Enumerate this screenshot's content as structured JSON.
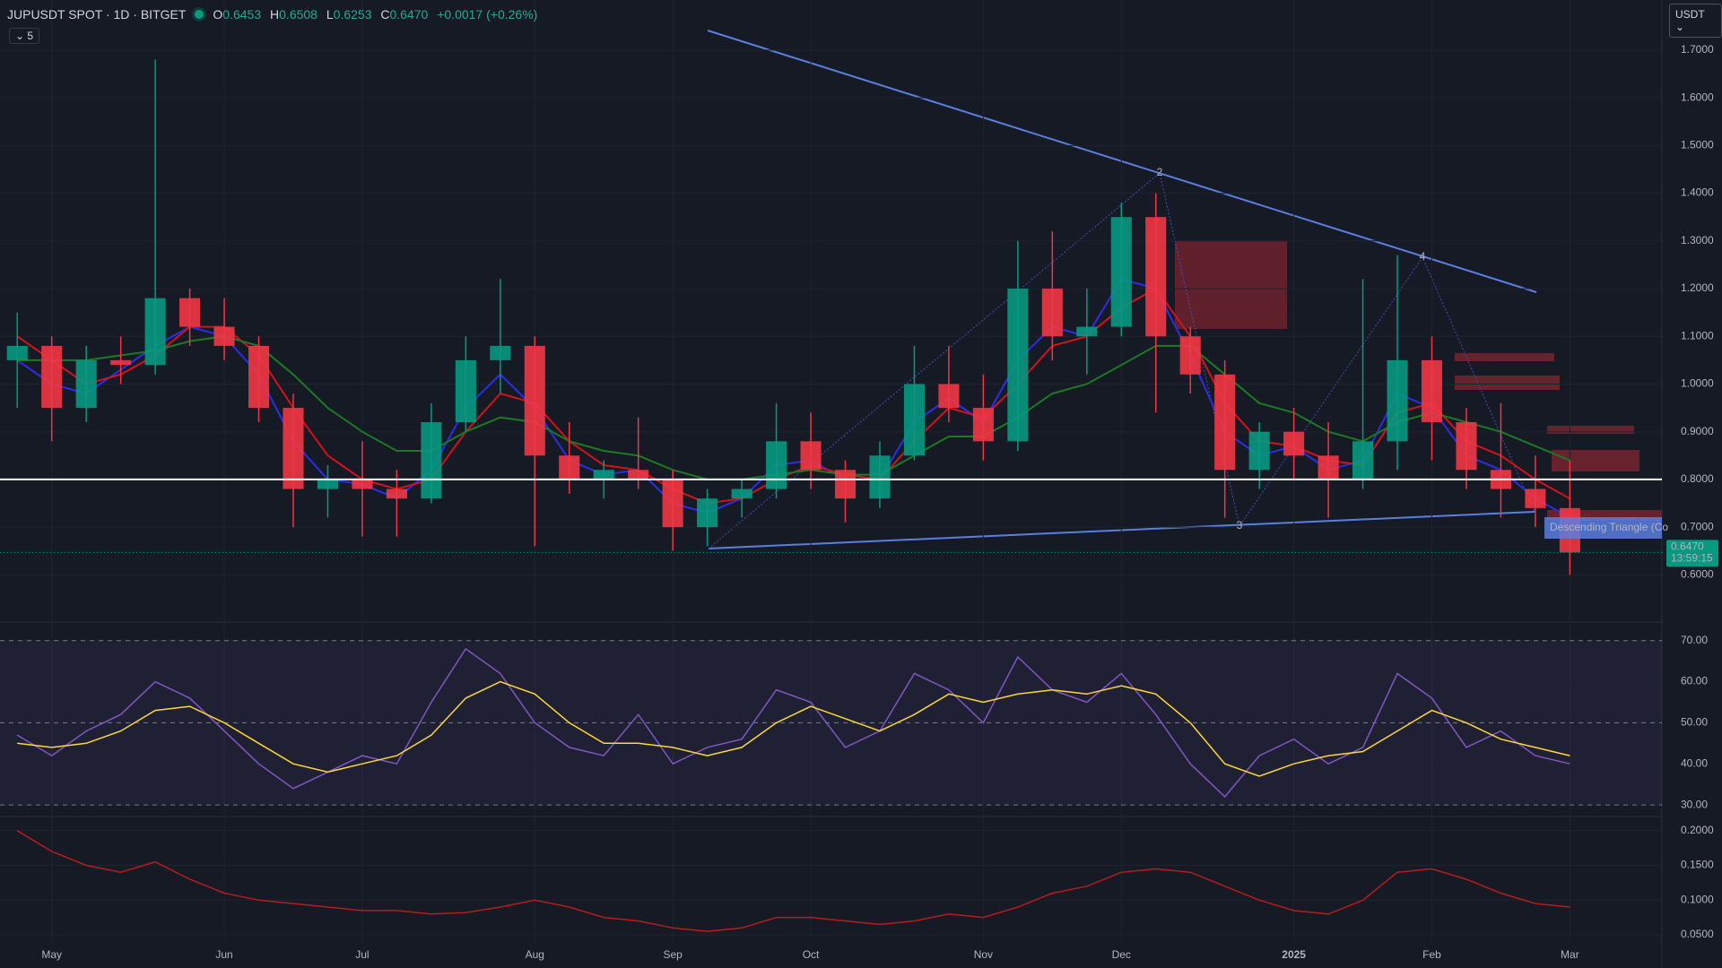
{
  "header": {
    "symbol": "JUPUSDT SPOT · 1D · BITGET",
    "ohlc": [
      {
        "label": "O",
        "value": "0.6453"
      },
      {
        "label": "H",
        "value": "0.6508"
      },
      {
        "label": "L",
        "value": "0.6253"
      },
      {
        "label": "C",
        "value": "0.6470"
      }
    ],
    "change": "+0.0017 (+0.26%)",
    "indicators": "5",
    "currency": "USDT"
  },
  "chart_data": [
    {
      "type": "candlestick",
      "categories": [
        null,
        "May",
        null,
        null,
        null,
        null,
        "Jun",
        null,
        null,
        null,
        "Jul",
        null,
        null,
        null,
        null,
        "Aug",
        null,
        null,
        null,
        "Sep",
        null,
        null,
        null,
        "Oct",
        null,
        null,
        null,
        null,
        "Nov",
        null,
        null,
        null,
        "Dec",
        null,
        null,
        null,
        null,
        "2025",
        null,
        null,
        null,
        "Feb",
        null,
        null,
        null,
        "Mar"
      ],
      "open": [
        1.05,
        1.08,
        0.95,
        1.05,
        1.04,
        1.18,
        1.12,
        1.08,
        0.95,
        0.78,
        0.8,
        0.78,
        0.76,
        0.92,
        1.05,
        1.08,
        0.85,
        0.8,
        0.82,
        0.8,
        0.7,
        0.76,
        0.78,
        0.88,
        0.82,
        0.76,
        0.85,
        1.0,
        0.95,
        0.88,
        1.2,
        1.1,
        1.12,
        1.35,
        1.1,
        1.02,
        0.82,
        0.9,
        0.85,
        0.8,
        0.88,
        1.05,
        0.92,
        0.82,
        0.78,
        0.74
      ],
      "high": [
        1.15,
        1.1,
        1.08,
        1.1,
        1.68,
        1.2,
        1.18,
        1.1,
        0.98,
        0.83,
        0.88,
        0.82,
        0.96,
        1.1,
        1.22,
        1.1,
        0.92,
        0.84,
        0.93,
        0.82,
        0.78,
        0.8,
        0.96,
        0.94,
        0.84,
        0.88,
        1.08,
        1.08,
        1.02,
        1.3,
        1.32,
        1.2,
        1.38,
        1.4,
        1.12,
        1.05,
        0.92,
        0.95,
        0.92,
        1.22,
        1.27,
        1.1,
        0.95,
        0.96,
        0.85,
        0.84
      ],
      "low": [
        0.95,
        0.88,
        0.92,
        1.0,
        1.02,
        1.08,
        1.05,
        0.92,
        0.7,
        0.72,
        0.68,
        0.68,
        0.75,
        0.9,
        0.98,
        0.66,
        0.77,
        0.76,
        0.78,
        0.65,
        0.66,
        0.72,
        0.76,
        0.78,
        0.71,
        0.74,
        0.84,
        0.92,
        0.84,
        0.86,
        1.05,
        1.02,
        1.1,
        0.94,
        0.98,
        0.72,
        0.78,
        0.8,
        0.72,
        0.78,
        0.82,
        0.84,
        0.78,
        0.72,
        0.7,
        0.6
      ],
      "close": [
        1.08,
        0.95,
        1.05,
        1.04,
        1.18,
        1.12,
        1.08,
        0.95,
        0.78,
        0.8,
        0.78,
        0.76,
        0.92,
        1.05,
        1.08,
        0.85,
        0.8,
        0.82,
        0.8,
        0.7,
        0.76,
        0.78,
        0.88,
        0.82,
        0.76,
        0.85,
        1.0,
        0.95,
        0.88,
        1.2,
        1.1,
        1.12,
        1.35,
        1.1,
        1.02,
        0.82,
        0.9,
        0.85,
        0.8,
        0.88,
        1.05,
        0.92,
        0.82,
        0.78,
        0.74,
        0.647
      ],
      "up_color": "#089981",
      "down_color": "#f23645",
      "series": [
        {
          "name": "MA fast",
          "color": "#2a2ee8",
          "values": [
            1.05,
            1.0,
            0.98,
            1.03,
            1.08,
            1.12,
            1.1,
            1.02,
            0.88,
            0.8,
            0.79,
            0.76,
            0.82,
            0.95,
            1.02,
            0.95,
            0.84,
            0.81,
            0.82,
            0.75,
            0.73,
            0.76,
            0.83,
            0.84,
            0.8,
            0.8,
            0.92,
            0.97,
            0.92,
            1.05,
            1.12,
            1.1,
            1.22,
            1.2,
            1.06,
            0.9,
            0.85,
            0.87,
            0.82,
            0.84,
            0.98,
            0.95,
            0.85,
            0.82,
            0.76,
            0.72
          ]
        },
        {
          "name": "MA mid",
          "color": "#d3121c",
          "values": [
            1.1,
            1.05,
            1.0,
            1.02,
            1.06,
            1.12,
            1.12,
            1.06,
            0.95,
            0.85,
            0.8,
            0.78,
            0.8,
            0.9,
            0.98,
            0.96,
            0.88,
            0.83,
            0.82,
            0.78,
            0.75,
            0.76,
            0.8,
            0.83,
            0.81,
            0.8,
            0.88,
            0.95,
            0.93,
            1.0,
            1.08,
            1.1,
            1.16,
            1.2,
            1.1,
            0.96,
            0.88,
            0.87,
            0.84,
            0.83,
            0.94,
            0.96,
            0.88,
            0.85,
            0.8,
            0.76
          ]
        },
        {
          "name": "MA slow",
          "color": "#1b7a22",
          "values": [
            1.05,
            1.05,
            1.05,
            1.06,
            1.07,
            1.09,
            1.1,
            1.08,
            1.02,
            0.95,
            0.9,
            0.86,
            0.86,
            0.9,
            0.93,
            0.92,
            0.88,
            0.86,
            0.85,
            0.82,
            0.8,
            0.8,
            0.81,
            0.82,
            0.81,
            0.81,
            0.85,
            0.89,
            0.89,
            0.93,
            0.98,
            1.0,
            1.04,
            1.08,
            1.08,
            1.02,
            0.96,
            0.94,
            0.9,
            0.88,
            0.92,
            0.94,
            0.92,
            0.9,
            0.87,
            0.84
          ]
        }
      ],
      "hline": 0.8,
      "ylim": [
        0.503,
        1.805
      ],
      "yticks": [
        {
          "value": 0.6,
          "label": "0.6000"
        },
        {
          "value": 0.7,
          "label": "0.7000"
        },
        {
          "value": 0.8,
          "label": "0.8000"
        },
        {
          "value": 0.9,
          "label": "0.9000"
        },
        {
          "value": 1.0,
          "label": "1.0000"
        },
        {
          "value": 1.1,
          "label": "1.1000"
        },
        {
          "value": 1.2,
          "label": "1.2000"
        },
        {
          "value": 1.3,
          "label": "1.3000"
        },
        {
          "value": 1.4,
          "label": "1.4000"
        },
        {
          "value": 1.5,
          "label": "1.5000"
        },
        {
          "value": 1.6,
          "label": "1.6000"
        },
        {
          "value": 1.7,
          "label": "1.7000"
        }
      ],
      "last_price": {
        "value": 0.647,
        "label": "0.6470",
        "countdown": "13:59:15"
      },
      "annotations": {
        "pattern": "Descending Triangle (Co",
        "points": [
          "2",
          "3",
          "4"
        ]
      },
      "grid": true
    },
    {
      "type": "line",
      "series": [
        {
          "name": "RSI",
          "color": "#7e57c2",
          "values": [
            47,
            42,
            48,
            52,
            60,
            56,
            48,
            40,
            34,
            38,
            42,
            40,
            55,
            68,
            62,
            50,
            44,
            42,
            52,
            40,
            44,
            46,
            58,
            55,
            44,
            48,
            62,
            58,
            50,
            66,
            58,
            55,
            62,
            52,
            40,
            32,
            42,
            46,
            40,
            44,
            62,
            56,
            44,
            48,
            42,
            40
          ]
        },
        {
          "name": "RSI MA",
          "color": "#fdd835",
          "values": [
            45,
            44,
            45,
            48,
            53,
            54,
            50,
            45,
            40,
            38,
            40,
            42,
            47,
            56,
            60,
            57,
            50,
            45,
            45,
            44,
            42,
            44,
            50,
            54,
            51,
            48,
            52,
            57,
            55,
            57,
            58,
            57,
            59,
            57,
            50,
            40,
            37,
            40,
            42,
            43,
            48,
            53,
            50,
            46,
            44,
            42
          ]
        }
      ],
      "levels": [
        30,
        50,
        70
      ],
      "ylim": [
        27.4,
        74.3
      ],
      "yticks": [
        {
          "value": 30,
          "label": "30.00"
        },
        {
          "value": 40,
          "label": "40.00"
        },
        {
          "value": 50,
          "label": "50.00"
        },
        {
          "value": 60,
          "label": "60.00"
        },
        {
          "value": 70,
          "label": "70.00"
        }
      ]
    },
    {
      "type": "line",
      "series": [
        {
          "name": "Indicator",
          "color": "#b71c1c",
          "values": [
            0.2,
            0.17,
            0.15,
            0.14,
            0.155,
            0.13,
            0.11,
            0.1,
            0.095,
            0.09,
            0.085,
            0.085,
            0.08,
            0.082,
            0.09,
            0.1,
            0.09,
            0.075,
            0.07,
            0.06,
            0.055,
            0.06,
            0.075,
            0.075,
            0.07,
            0.065,
            0.07,
            0.08,
            0.075,
            0.09,
            0.11,
            0.12,
            0.14,
            0.145,
            0.14,
            0.12,
            0.1,
            0.085,
            0.08,
            0.1,
            0.14,
            0.145,
            0.13,
            0.11,
            0.095,
            0.09
          ]
        }
      ],
      "ylim": [
        0.041,
        0.219
      ],
      "yticks": [
        {
          "value": 0.05,
          "label": "0.0500"
        },
        {
          "value": 0.1,
          "label": "0.1000"
        },
        {
          "value": 0.15,
          "label": "0.1500"
        },
        {
          "value": 0.2,
          "label": "0.2000"
        }
      ]
    }
  ]
}
